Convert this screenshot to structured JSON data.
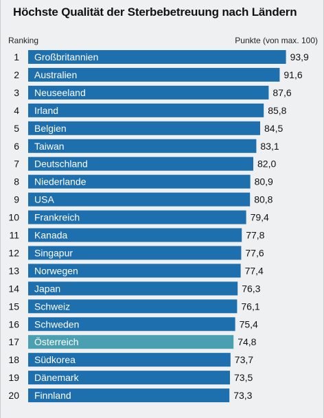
{
  "header": {
    "title": "Höchste Qualität der Sterbebetreuung nach Ländern",
    "ranking_label": "Ranking",
    "points_label": "Punkte (von max. 100)"
  },
  "colors": {
    "bar": "#1d6fae",
    "highlight": "#4aa0b0",
    "background": "#eef0f2"
  },
  "chart_data": {
    "type": "bar",
    "orientation": "horizontal",
    "title": "Höchste Qualität der Sterbebetreuung nach Ländern",
    "xlabel": "Punkte (von max. 100)",
    "ylabel": "Ranking",
    "ranks": [
      "1",
      "2",
      "3",
      "4",
      "5",
      "6",
      "7",
      "8",
      "9",
      "10",
      "11",
      "12",
      "13",
      "14",
      "15",
      "16",
      "17",
      "18",
      "19",
      "20"
    ],
    "categories": [
      "Großbritannien",
      "Australien",
      "Neuseeland",
      "Irland",
      "Belgien",
      "Taiwan",
      "Deutschland",
      "Niederlande",
      "USA",
      "Frankreich",
      "Kanada",
      "Singapur",
      "Norwegen",
      "Japan",
      "Schweiz",
      "Schweden",
      "Österreich",
      "Südkorea",
      "Dänemark",
      "Finnland"
    ],
    "values": [
      93.9,
      91.6,
      87.6,
      85.8,
      84.5,
      83.1,
      82.0,
      80.9,
      80.8,
      79.4,
      77.8,
      77.6,
      77.4,
      76.3,
      76.1,
      75.4,
      74.8,
      73.7,
      73.5,
      73.3
    ],
    "value_labels": [
      "93,9",
      "91,6",
      "87,6",
      "85,8",
      "84,5",
      "83,1",
      "82,0",
      "80,9",
      "80,8",
      "79,4",
      "77,8",
      "77,6",
      "77,4",
      "76,3",
      "76,1",
      "75,4",
      "74,8",
      "73,7",
      "73,5",
      "73,3"
    ],
    "highlighted_category": "Österreich",
    "xlim": [
      0,
      100
    ]
  }
}
